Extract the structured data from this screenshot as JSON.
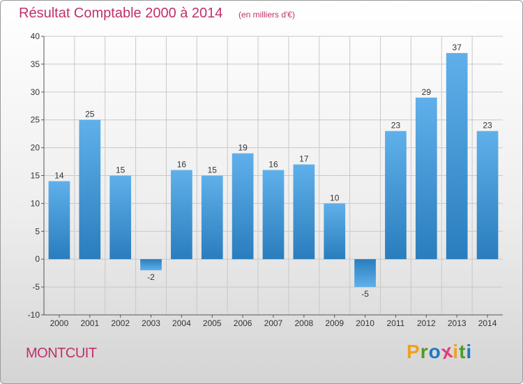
{
  "chart_data": {
    "type": "bar",
    "title": "Résultat Comptable 2000 à 2014",
    "subtitle": "(en milliers d'€)",
    "categories": [
      "2000",
      "2001",
      "2002",
      "2003",
      "2004",
      "2005",
      "2006",
      "2007",
      "2008",
      "2009",
      "2010",
      "2011",
      "2012",
      "2013",
      "2014"
    ],
    "values": [
      14,
      25,
      15,
      -2,
      16,
      15,
      19,
      16,
      17,
      10,
      -5,
      23,
      29,
      37,
      23
    ],
    "ylim": [
      -10,
      40
    ],
    "yticks": [
      -10,
      -5,
      0,
      5,
      10,
      15,
      20,
      25,
      30,
      35,
      40
    ],
    "xlabel": "",
    "ylabel": "",
    "grid": true
  },
  "footer": {
    "town": "MONTCUIT",
    "logo_letters": [
      "P",
      "r",
      "o",
      "x",
      "i",
      "t",
      "i"
    ]
  },
  "colors": {
    "title": "#c0306a",
    "bar_light": "#5fb0ea",
    "bar_dark": "#2a7dbd",
    "grid": "#c8c8c8",
    "axis": "#555555",
    "logo": [
      "#f0a020",
      "#4f9a2a",
      "#1e77c4",
      "#e63b7a",
      "#f0a020",
      "#4f9a2a",
      "#1e77c4"
    ]
  }
}
